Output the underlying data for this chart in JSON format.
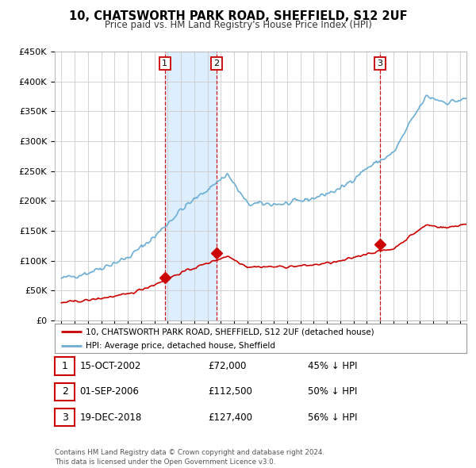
{
  "title": "10, CHATSWORTH PARK ROAD, SHEFFIELD, S12 2UF",
  "subtitle": "Price paid vs. HM Land Registry's House Price Index (HPI)",
  "legend_line1": "10, CHATSWORTH PARK ROAD, SHEFFIELD, S12 2UF (detached house)",
  "legend_line2": "HPI: Average price, detached house, Sheffield",
  "sale_color": "#cc0000",
  "hpi_color": "#6baed6",
  "shade_color": "#ddeeff",
  "background_color": "#ffffff",
  "grid_color": "#cccccc",
  "ylim": [
    0,
    450000
  ],
  "yticks": [
    0,
    50000,
    100000,
    150000,
    200000,
    250000,
    300000,
    350000,
    400000,
    450000
  ],
  "sales": [
    {
      "date_num": 2002.79,
      "price": 72000,
      "label": "1"
    },
    {
      "date_num": 2006.67,
      "price": 112500,
      "label": "2"
    },
    {
      "date_num": 2018.97,
      "price": 127400,
      "label": "3"
    }
  ],
  "table_rows": [
    {
      "num": "1",
      "date": "15-OCT-2002",
      "price": "£72,000",
      "hpi": "45% ↓ HPI"
    },
    {
      "num": "2",
      "date": "01-SEP-2006",
      "price": "£112,500",
      "hpi": "50% ↓ HPI"
    },
    {
      "num": "3",
      "date": "19-DEC-2018",
      "price": "£127,400",
      "hpi": "56% ↓ HPI"
    }
  ],
  "footer": "Contains HM Land Registry data © Crown copyright and database right 2024.\nThis data is licensed under the Open Government Licence v3.0.",
  "xmin": 1994.5,
  "xmax": 2025.5
}
